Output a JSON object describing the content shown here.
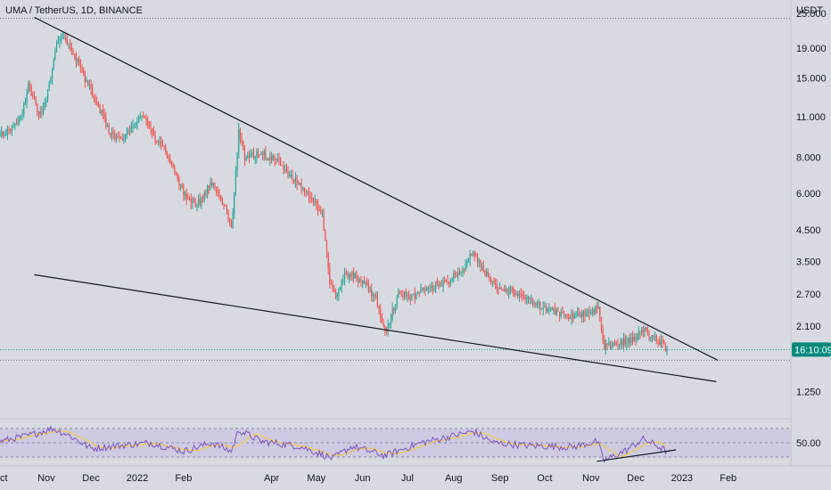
{
  "header": {
    "symbol_title": "UMA / TetherUS, 1D, BINANCE",
    "currency_label": "USDT"
  },
  "price_badge": {
    "label": "16:10:09",
    "value": 1.74,
    "color": "#00897b"
  },
  "colors": {
    "up": "#26a69a",
    "down": "#ef5350",
    "rsi_line": "#7e57c2",
    "rsi_ma": "#f2c94c",
    "trendline": "#131722",
    "background": "#d8dae1"
  },
  "chart_data": {
    "type": "candlestick",
    "title": "UMA / TetherUS, 1D, BINANCE",
    "y_unit": "USDT",
    "y_scale": "log",
    "ylim": [
      1.05,
      27.0
    ],
    "y_ticks": [
      {
        "value": 25.0,
        "label": "25.000"
      },
      {
        "value": 19.0,
        "label": "19.000"
      },
      {
        "value": 15.0,
        "label": "15.000"
      },
      {
        "value": 11.0,
        "label": "11.000"
      },
      {
        "value": 8.0,
        "label": "8.000"
      },
      {
        "value": 6.0,
        "label": "6.000"
      },
      {
        "value": 4.5,
        "label": "4.500"
      },
      {
        "value": 3.5,
        "label": "3.500"
      },
      {
        "value": 2.7,
        "label": "2.700"
      },
      {
        "value": 2.1,
        "label": "2.100"
      },
      {
        "value": 1.25,
        "label": "1.250"
      }
    ],
    "x_range": [
      "2021-10-01",
      "2023-03-15"
    ],
    "x_ticks": [
      {
        "date": "2021-10-01",
        "label": "Oct"
      },
      {
        "date": "2021-11-01",
        "label": "Nov"
      },
      {
        "date": "2021-12-01",
        "label": "Dec"
      },
      {
        "date": "2022-01-01",
        "label": "2022"
      },
      {
        "date": "2022-02-01",
        "label": "Feb"
      },
      {
        "date": "2022-04-01",
        "label": "Apr"
      },
      {
        "date": "2022-05-01",
        "label": "May"
      },
      {
        "date": "2022-06-01",
        "label": "Jun"
      },
      {
        "date": "2022-07-01",
        "label": "Jul"
      },
      {
        "date": "2022-08-01",
        "label": "Aug"
      },
      {
        "date": "2022-09-01",
        "label": "Sep"
      },
      {
        "date": "2022-10-01",
        "label": "Oct"
      },
      {
        "date": "2022-11-01",
        "label": "Nov"
      },
      {
        "date": "2022-12-01",
        "label": "Dec"
      },
      {
        "date": "2023-01-01",
        "label": "2023"
      },
      {
        "date": "2023-02-01",
        "label": "Feb"
      }
    ],
    "anchors": [
      [
        "2021-10-01",
        9.5
      ],
      [
        "2021-10-15",
        10.8
      ],
      [
        "2021-10-20",
        14.0
      ],
      [
        "2021-10-27",
        11.2
      ],
      [
        "2021-11-01",
        12.5
      ],
      [
        "2021-11-08",
        19.5
      ],
      [
        "2021-11-12",
        21.0
      ],
      [
        "2021-11-20",
        18.0
      ],
      [
        "2021-11-28",
        14.5
      ],
      [
        "2021-12-06",
        12.0
      ],
      [
        "2021-12-14",
        9.5
      ],
      [
        "2021-12-22",
        9.2
      ],
      [
        "2021-12-30",
        10.5
      ],
      [
        "2022-01-05",
        11.0
      ],
      [
        "2022-01-12",
        9.5
      ],
      [
        "2022-01-22",
        8.0
      ],
      [
        "2022-02-01",
        6.0
      ],
      [
        "2022-02-10",
        5.5
      ],
      [
        "2022-02-20",
        6.5
      ],
      [
        "2022-03-01",
        5.3
      ],
      [
        "2022-03-05",
        4.6
      ],
      [
        "2022-03-07",
        6.0
      ],
      [
        "2022-03-10",
        10.0
      ],
      [
        "2022-03-14",
        8.0
      ],
      [
        "2022-03-25",
        8.2
      ],
      [
        "2022-04-05",
        7.8
      ],
      [
        "2022-04-15",
        6.8
      ],
      [
        "2022-04-28",
        5.8
      ],
      [
        "2022-05-05",
        5.0
      ],
      [
        "2022-05-10",
        3.0
      ],
      [
        "2022-05-14",
        2.6
      ],
      [
        "2022-05-20",
        3.2
      ],
      [
        "2022-06-01",
        3.0
      ],
      [
        "2022-06-10",
        2.6
      ],
      [
        "2022-06-16",
        1.98
      ],
      [
        "2022-06-25",
        2.7
      ],
      [
        "2022-07-05",
        2.65
      ],
      [
        "2022-07-15",
        2.85
      ],
      [
        "2022-07-28",
        3.0
      ],
      [
        "2022-08-08",
        3.3
      ],
      [
        "2022-08-14",
        3.85
      ],
      [
        "2022-08-22",
        3.2
      ],
      [
        "2022-09-01",
        2.85
      ],
      [
        "2022-09-15",
        2.7
      ],
      [
        "2022-09-30",
        2.4
      ],
      [
        "2022-10-15",
        2.28
      ],
      [
        "2022-10-28",
        2.3
      ],
      [
        "2022-11-06",
        2.42
      ],
      [
        "2022-11-08",
        2.0
      ],
      [
        "2022-11-10",
        1.78
      ],
      [
        "2022-11-20",
        1.83
      ],
      [
        "2022-12-01",
        1.9
      ],
      [
        "2022-12-06",
        2.05
      ],
      [
        "2022-12-12",
        1.9
      ],
      [
        "2022-12-18",
        1.85
      ],
      [
        "2022-12-22",
        1.74
      ]
    ],
    "trendlines": [
      {
        "name": "upper",
        "from": [
          "2021-10-24",
          24.2
        ],
        "to": [
          "2023-01-25",
          1.6
        ]
      },
      {
        "name": "lower",
        "from": [
          "2021-10-24",
          3.15
        ],
        "to": [
          "2023-01-24",
          1.35
        ]
      }
    ],
    "horizontal_lines": [
      {
        "value": 24.0,
        "style": "dotted"
      },
      {
        "value": 1.74,
        "style": "dotted"
      },
      {
        "value": 1.6,
        "style": "dotted"
      }
    ],
    "rsi": {
      "ylim": [
        20,
        80
      ],
      "tick": {
        "value": 50,
        "label": "50.00"
      },
      "band": [
        30,
        70
      ],
      "anchors": [
        [
          "2021-10-01",
          52
        ],
        [
          "2021-10-20",
          60
        ],
        [
          "2021-11-05",
          70
        ],
        [
          "2021-11-15",
          62
        ],
        [
          "2021-12-01",
          42
        ],
        [
          "2021-12-20",
          46
        ],
        [
          "2022-01-10",
          50
        ],
        [
          "2022-02-01",
          38
        ],
        [
          "2022-02-20",
          50
        ],
        [
          "2022-03-05",
          38
        ],
        [
          "2022-03-10",
          68
        ],
        [
          "2022-03-25",
          52
        ],
        [
          "2022-04-20",
          45
        ],
        [
          "2022-05-12",
          28
        ],
        [
          "2022-05-25",
          45
        ],
        [
          "2022-06-16",
          32
        ],
        [
          "2022-07-10",
          50
        ],
        [
          "2022-08-14",
          66
        ],
        [
          "2022-08-28",
          50
        ],
        [
          "2022-09-20",
          46
        ],
        [
          "2022-10-20",
          44
        ],
        [
          "2022-11-05",
          52
        ],
        [
          "2022-11-10",
          25
        ],
        [
          "2022-11-25",
          40
        ],
        [
          "2022-12-06",
          55
        ],
        [
          "2022-12-15",
          46
        ],
        [
          "2022-12-22",
          38
        ]
      ],
      "divergence_line": {
        "from": [
          "2022-11-05",
          24
        ],
        "to": [
          "2022-12-28",
          40
        ]
      }
    }
  }
}
